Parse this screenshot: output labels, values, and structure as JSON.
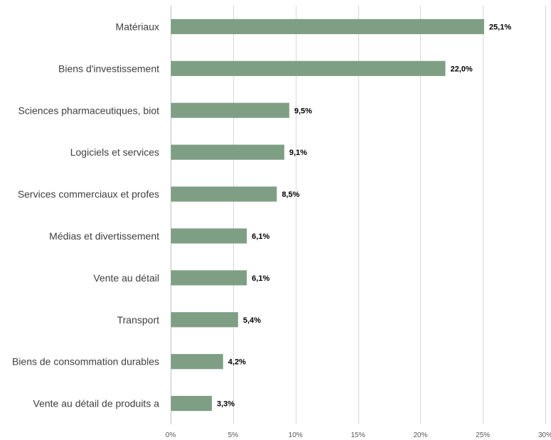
{
  "chart_data": {
    "type": "bar",
    "orientation": "horizontal",
    "categories": [
      "Matériaux",
      "Biens d'investissement",
      "Sciences pharmaceutiques, biot",
      "Logiciels et services",
      "Services commerciaux et profes",
      "Médias et divertissement",
      "Vente au détail",
      "Transport",
      "Biens de consommation durables",
      "Vente au détail de produits a"
    ],
    "values": [
      25.1,
      22.0,
      9.5,
      9.1,
      8.5,
      6.1,
      6.1,
      5.4,
      4.2,
      3.3
    ],
    "data_labels": [
      "25,1%",
      "22,0%",
      "9,5%",
      "9,1%",
      "8,5%",
      "6,1%",
      "6,1%",
      "5,4%",
      "4,2%",
      "3,3%"
    ],
    "x_ticks": [
      0,
      5,
      10,
      15,
      20,
      25,
      30
    ],
    "x_tick_labels": [
      "0%",
      "5%",
      "10%",
      "15%",
      "20%",
      "25%",
      "30%"
    ],
    "xlim": [
      0,
      30
    ],
    "title": "",
    "xlabel": "",
    "ylabel": "",
    "grid": "vertical",
    "bar_color": "#7f9f85"
  }
}
